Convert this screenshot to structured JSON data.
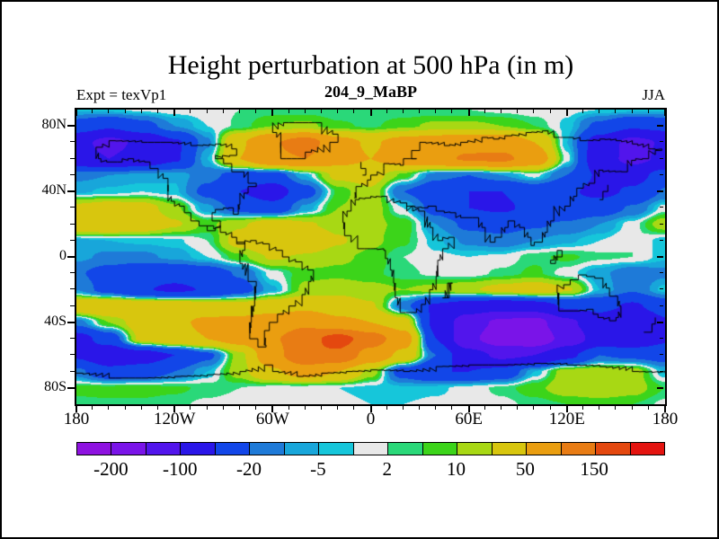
{
  "header": {
    "title": "Height perturbation at 500 hPa (in m)",
    "subtitle": "204_9_MaBP",
    "experiment_label": "Expt = texVp1",
    "season_label": "JJA"
  },
  "axes": {
    "x": {
      "major_lons": [
        -180,
        -120,
        -60,
        0,
        60,
        120,
        180
      ],
      "major_labels": [
        "180",
        "120W",
        "60W",
        "0",
        "60E",
        "120E",
        "180"
      ],
      "minor_step_deg": 10
    },
    "y": {
      "major_lats": [
        80,
        40,
        0,
        -40,
        -80
      ],
      "major_labels": [
        "80N",
        "40N",
        "0",
        "40S",
        "80S"
      ],
      "minor_step_deg": 10
    }
  },
  "colorbar": {
    "labels": [
      "-200",
      "-100",
      "-20",
      "-5",
      "2",
      "10",
      "50",
      "150"
    ],
    "label_boundaries": [
      1,
      3,
      5,
      7,
      9,
      11,
      13,
      15
    ]
  },
  "chart_data": {
    "type": "heatmap",
    "title": "Height perturbation at 500 hPa (in m)",
    "subtitle": "204_9_MaBP",
    "experiment": "texVp1",
    "season": "JJA",
    "units": "m",
    "projection": "equirectangular",
    "lon_range": [
      -180,
      180
    ],
    "lat_range": [
      -90,
      90
    ],
    "contour_levels": [
      -200,
      -150,
      -100,
      -50,
      -20,
      -10,
      -5,
      -2,
      2,
      5,
      10,
      20,
      50,
      100,
      150,
      200
    ],
    "palette": [
      "#8e12e0",
      "#7a14e8",
      "#5215ec",
      "#2a16e8",
      "#1246e8",
      "#1e7ad8",
      "#18a6da",
      "#16c6da",
      "#e8e8e8",
      "#2ad879",
      "#3cd41a",
      "#a8d814",
      "#d8c60e",
      "#ea9e10",
      "#e87c14",
      "#e4480f",
      "#e41410"
    ],
    "coastline_color": "#000000",
    "grid": {
      "lons": [
        -180,
        -160,
        -140,
        -120,
        -100,
        -80,
        -60,
        -40,
        -20,
        0,
        20,
        40,
        60,
        80,
        100,
        120,
        140,
        160,
        180
      ],
      "lats": [
        90,
        80,
        70,
        60,
        50,
        40,
        30,
        20,
        10,
        0,
        -10,
        -20,
        -30,
        -40,
        -50,
        -60,
        -70,
        -80,
        -90
      ],
      "values": [
        [
          -4,
          -3,
          -1,
          0,
          0,
          2,
          3,
          3,
          2,
          2,
          2,
          2,
          2,
          1,
          0,
          -1,
          -2,
          -3,
          -4
        ],
        [
          -30,
          -45,
          -28,
          -10,
          -2,
          3,
          10,
          12,
          6,
          4,
          8,
          12,
          12,
          10,
          5,
          -3,
          -25,
          -45,
          -38
        ],
        [
          -85,
          -115,
          -90,
          -55,
          -12,
          45,
          95,
          125,
          65,
          45,
          65,
          75,
          85,
          80,
          50,
          -5,
          -70,
          -115,
          -95
        ],
        [
          -80,
          -100,
          -80,
          -55,
          -5,
          50,
          90,
          100,
          65,
          50,
          70,
          90,
          105,
          110,
          80,
          0,
          -75,
          -115,
          -90
        ],
        [
          -12,
          -10,
          -8,
          -6,
          -15,
          -28,
          -30,
          -5,
          25,
          28,
          8,
          -15,
          -20,
          -10,
          0,
          -20,
          -55,
          -65,
          -35
        ],
        [
          -6,
          -4,
          -2,
          -4,
          -25,
          -50,
          -70,
          -28,
          6,
          18,
          -20,
          -35,
          -50,
          -50,
          -35,
          -45,
          -60,
          -45,
          -18
        ],
        [
          25,
          32,
          28,
          12,
          -8,
          -28,
          -38,
          -8,
          10,
          15,
          -2,
          -28,
          -50,
          -55,
          -42,
          -38,
          -32,
          -18,
          0
        ],
        [
          40,
          45,
          38,
          22,
          8,
          18,
          32,
          22,
          15,
          12,
          8,
          -10,
          -24,
          -28,
          -22,
          -18,
          -10,
          0,
          15
        ],
        [
          -6,
          -5,
          -4,
          -3,
          2,
          28,
          50,
          38,
          22,
          12,
          6,
          -4,
          -12,
          -15,
          -10,
          -6,
          -2,
          2,
          -4
        ],
        [
          -8,
          -12,
          -12,
          -8,
          -2,
          8,
          22,
          18,
          12,
          8,
          2,
          -1,
          -2,
          -1,
          4,
          6,
          3,
          2,
          -4
        ],
        [
          -18,
          -28,
          -38,
          -40,
          -32,
          -18,
          0,
          8,
          8,
          6,
          3,
          1,
          0,
          3,
          6,
          0,
          -8,
          -16,
          -12
        ],
        [
          -10,
          -28,
          -48,
          -55,
          -48,
          -28,
          -6,
          12,
          16,
          13,
          10,
          13,
          18,
          26,
          32,
          22,
          -5,
          -18,
          -3
        ],
        [
          40,
          45,
          42,
          40,
          35,
          30,
          35,
          40,
          30,
          22,
          -15,
          -55,
          -70,
          -80,
          -70,
          -45,
          -40,
          -55,
          -35
        ],
        [
          -15,
          10,
          30,
          45,
          55,
          60,
          70,
          90,
          60,
          50,
          30,
          -60,
          -130,
          -160,
          -170,
          -110,
          -70,
          -100,
          -55
        ],
        [
          -65,
          -35,
          25,
          40,
          50,
          65,
          95,
          130,
          170,
          125,
          70,
          -50,
          -140,
          -180,
          -190,
          -130,
          -80,
          -80,
          -55
        ],
        [
          -55,
          -80,
          -70,
          -50,
          -25,
          15,
          80,
          150,
          140,
          80,
          40,
          -20,
          -80,
          -110,
          -100,
          -60,
          -20,
          -25,
          -30
        ],
        [
          -15,
          -40,
          -35,
          -20,
          -5,
          15,
          45,
          70,
          50,
          15,
          -30,
          -50,
          -50,
          -40,
          -5,
          15,
          16,
          15,
          -5
        ],
        [
          6,
          7,
          7,
          6,
          4,
          2,
          0,
          -1,
          -2,
          -3,
          -4,
          -3,
          0,
          3,
          8,
          15,
          18,
          14,
          5
        ],
        [
          4,
          4,
          4,
          3,
          1,
          0,
          -1,
          -1,
          -1,
          -2,
          -2,
          -1,
          0,
          1,
          3,
          5,
          6,
          5,
          1
        ]
      ]
    },
    "coastlines": [
      [
        [
          -168,
          67
        ],
        [
          -160,
          71
        ],
        [
          -140,
          70
        ],
        [
          -125,
          70
        ],
        [
          -110,
          68
        ],
        [
          -95,
          69
        ],
        [
          -85,
          66
        ],
        [
          -82,
          62
        ],
        [
          -95,
          60
        ],
        [
          -90,
          57
        ],
        [
          -85,
          52
        ],
        [
          -80,
          52
        ],
        [
          -75,
          45
        ],
        [
          -70,
          43
        ],
        [
          -75,
          39
        ],
        [
          -80,
          32
        ],
        [
          -81,
          26
        ],
        [
          -84,
          30
        ],
        [
          -90,
          29
        ],
        [
          -95,
          27
        ],
        [
          -97,
          22
        ],
        [
          -92,
          18
        ],
        [
          -95,
          16
        ],
        [
          -100,
          19
        ],
        [
          -105,
          22
        ],
        [
          -110,
          27
        ],
        [
          -114,
          31
        ],
        [
          -120,
          34
        ],
        [
          -124,
          40
        ],
        [
          -124,
          48
        ],
        [
          -130,
          54
        ],
        [
          -135,
          58
        ],
        [
          -145,
          60
        ],
        [
          -152,
          58
        ],
        [
          -158,
          58
        ],
        [
          -165,
          60
        ],
        [
          -168,
          67
        ]
      ],
      [
        [
          -100,
          19
        ],
        [
          -92,
          15
        ],
        [
          -85,
          12
        ],
        [
          -82,
          9
        ]
      ],
      [
        [
          -82,
          9
        ],
        [
          -77,
          4
        ],
        [
          -80,
          -4
        ],
        [
          -75,
          -15
        ],
        [
          -70,
          -18
        ],
        [
          -71,
          -30
        ],
        [
          -73,
          -40
        ],
        [
          -74,
          -50
        ],
        [
          -69,
          -55
        ],
        [
          -64,
          -54
        ],
        [
          -65,
          -45
        ],
        [
          -62,
          -40
        ],
        [
          -57,
          -35
        ],
        [
          -50,
          -30
        ],
        [
          -42,
          -23
        ],
        [
          -38,
          -15
        ],
        [
          -35,
          -8
        ],
        [
          -42,
          -3
        ],
        [
          -50,
          0
        ],
        [
          -54,
          4
        ],
        [
          -62,
          8
        ],
        [
          -70,
          10
        ],
        [
          -77,
          8
        ],
        [
          -82,
          9
        ]
      ],
      [
        [
          -55,
          60
        ],
        [
          -45,
          60
        ],
        [
          -40,
          64
        ],
        [
          -25,
          70
        ],
        [
          -20,
          75
        ],
        [
          -30,
          82
        ],
        [
          -50,
          82
        ],
        [
          -60,
          76
        ],
        [
          -55,
          70
        ],
        [
          -55,
          60
        ]
      ],
      [
        [
          -7,
          35
        ],
        [
          -12,
          28
        ],
        [
          -17,
          21
        ],
        [
          -16,
          13
        ],
        [
          -8,
          5
        ],
        [
          0,
          5
        ],
        [
          8,
          4
        ],
        [
          9,
          -1
        ],
        [
          12,
          -8
        ],
        [
          14,
          -16
        ],
        [
          15,
          -25
        ],
        [
          18,
          -34
        ],
        [
          25,
          -34
        ],
        [
          31,
          -29
        ],
        [
          36,
          -20
        ],
        [
          40,
          -12
        ],
        [
          41,
          -2
        ],
        [
          44,
          5
        ],
        [
          51,
          12
        ],
        [
          44,
          10
        ],
        [
          38,
          18
        ],
        [
          33,
          28
        ],
        [
          22,
          33
        ],
        [
          10,
          37
        ],
        [
          0,
          36
        ],
        [
          -7,
          35
        ]
      ],
      [
        [
          -10,
          36
        ],
        [
          -9,
          43
        ],
        [
          -2,
          47
        ],
        [
          0,
          50
        ],
        [
          8,
          54
        ],
        [
          8,
          57
        ],
        [
          18,
          56
        ],
        [
          20,
          60
        ],
        [
          28,
          60
        ],
        [
          25,
          65
        ],
        [
          30,
          70
        ],
        [
          45,
          68
        ],
        [
          55,
          70
        ],
        [
          68,
          73
        ],
        [
          75,
          72
        ],
        [
          82,
          74
        ],
        [
          95,
          76
        ],
        [
          105,
          77
        ],
        [
          112,
          73
        ],
        [
          120,
          73
        ],
        [
          128,
          71
        ],
        [
          140,
          72
        ],
        [
          150,
          71
        ],
        [
          160,
          69
        ],
        [
          170,
          66
        ],
        [
          178,
          65
        ],
        [
          170,
          60
        ],
        [
          162,
          59
        ],
        [
          157,
          52
        ],
        [
          142,
          53
        ],
        [
          137,
          45
        ],
        [
          130,
          42
        ],
        [
          126,
          37
        ],
        [
          122,
          31
        ],
        [
          112,
          22
        ],
        [
          108,
          15
        ],
        [
          105,
          9
        ],
        [
          100,
          7
        ],
        [
          98,
          12
        ],
        [
          94,
          18
        ],
        [
          88,
          22
        ],
        [
          84,
          18
        ],
        [
          80,
          12
        ],
        [
          76,
          9
        ],
        [
          70,
          18
        ],
        [
          66,
          24
        ],
        [
          58,
          24
        ],
        [
          52,
          27
        ],
        [
          45,
          28
        ],
        [
          40,
          31
        ],
        [
          35,
          30
        ],
        [
          27,
          31
        ],
        [
          22,
          33
        ]
      ],
      [
        [
          -5,
          50
        ],
        [
          -3,
          54
        ],
        [
          -6,
          58
        ]
      ],
      [
        [
          140,
          35
        ],
        [
          142,
          40
        ],
        [
          145,
          44
        ]
      ],
      [
        [
          44,
          -25
        ],
        [
          47,
          -16
        ],
        [
          50,
          -16
        ],
        [
          48,
          -25
        ],
        [
          44,
          -25
        ]
      ],
      [
        [
          110,
          -2
        ],
        [
          114,
          4
        ],
        [
          117,
          0
        ],
        [
          113,
          -4
        ],
        [
          110,
          -2
        ]
      ],
      [
        [
          114,
          -22
        ],
        [
          115,
          -33
        ],
        [
          124,
          -33
        ],
        [
          132,
          -32
        ],
        [
          136,
          -35
        ],
        [
          139,
          -37
        ],
        [
          146,
          -39
        ],
        [
          150,
          -37
        ],
        [
          153,
          -30
        ],
        [
          151,
          -24
        ],
        [
          146,
          -19
        ],
        [
          142,
          -13
        ],
        [
          137,
          -12
        ],
        [
          132,
          -11
        ],
        [
          127,
          -14
        ],
        [
          122,
          -17
        ],
        [
          114,
          -22
        ]
      ],
      [
        [
          167,
          -46
        ],
        [
          172,
          -41
        ],
        [
          174,
          -37
        ]
      ],
      [
        [
          -180,
          -71
        ],
        [
          -160,
          -74
        ],
        [
          -140,
          -74
        ],
        [
          -120,
          -73
        ],
        [
          -100,
          -72
        ],
        [
          -80,
          -70
        ],
        [
          -65,
          -66
        ],
        [
          -60,
          -70
        ],
        [
          -45,
          -73
        ],
        [
          -30,
          -71
        ],
        [
          -15,
          -70
        ],
        [
          0,
          -69
        ],
        [
          20,
          -70
        ],
        [
          40,
          -67
        ],
        [
          60,
          -66
        ],
        [
          80,
          -66
        ],
        [
          100,
          -65
        ],
        [
          120,
          -66
        ],
        [
          140,
          -67
        ],
        [
          160,
          -70
        ],
        [
          180,
          -71
        ]
      ]
    ]
  }
}
